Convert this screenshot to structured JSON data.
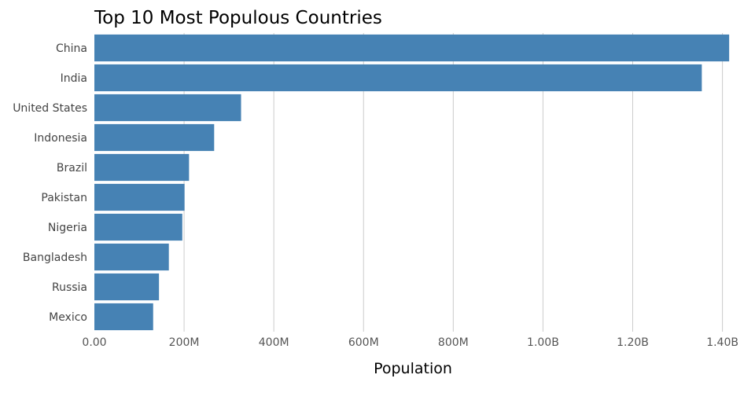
{
  "chart_data": {
    "type": "bar",
    "orientation": "horizontal",
    "title": "Top 10 Most Populous Countries",
    "xlabel": "Population",
    "ylabel": "",
    "categories": [
      "China",
      "India",
      "United States",
      "Indonesia",
      "Brazil",
      "Pakistan",
      "Nigeria",
      "Bangladesh",
      "Russia",
      "Mexico"
    ],
    "values": [
      1415000000,
      1354000000,
      327000000,
      267000000,
      211000000,
      201000000,
      196000000,
      166000000,
      144000000,
      131000000
    ],
    "xlim": [
      0,
      1420000000
    ],
    "ticks": [
      {
        "value": 0,
        "label": "0.00"
      },
      {
        "value": 200000000,
        "label": "200M"
      },
      {
        "value": 400000000,
        "label": "400M"
      },
      {
        "value": 600000000,
        "label": "600M"
      },
      {
        "value": 800000000,
        "label": "800M"
      },
      {
        "value": 1000000000,
        "label": "1.00B"
      },
      {
        "value": 1200000000,
        "label": "1.20B"
      },
      {
        "value": 1400000000,
        "label": "1.40B"
      }
    ],
    "grid": true,
    "legend": "none",
    "bar_color": "#4682b4"
  }
}
